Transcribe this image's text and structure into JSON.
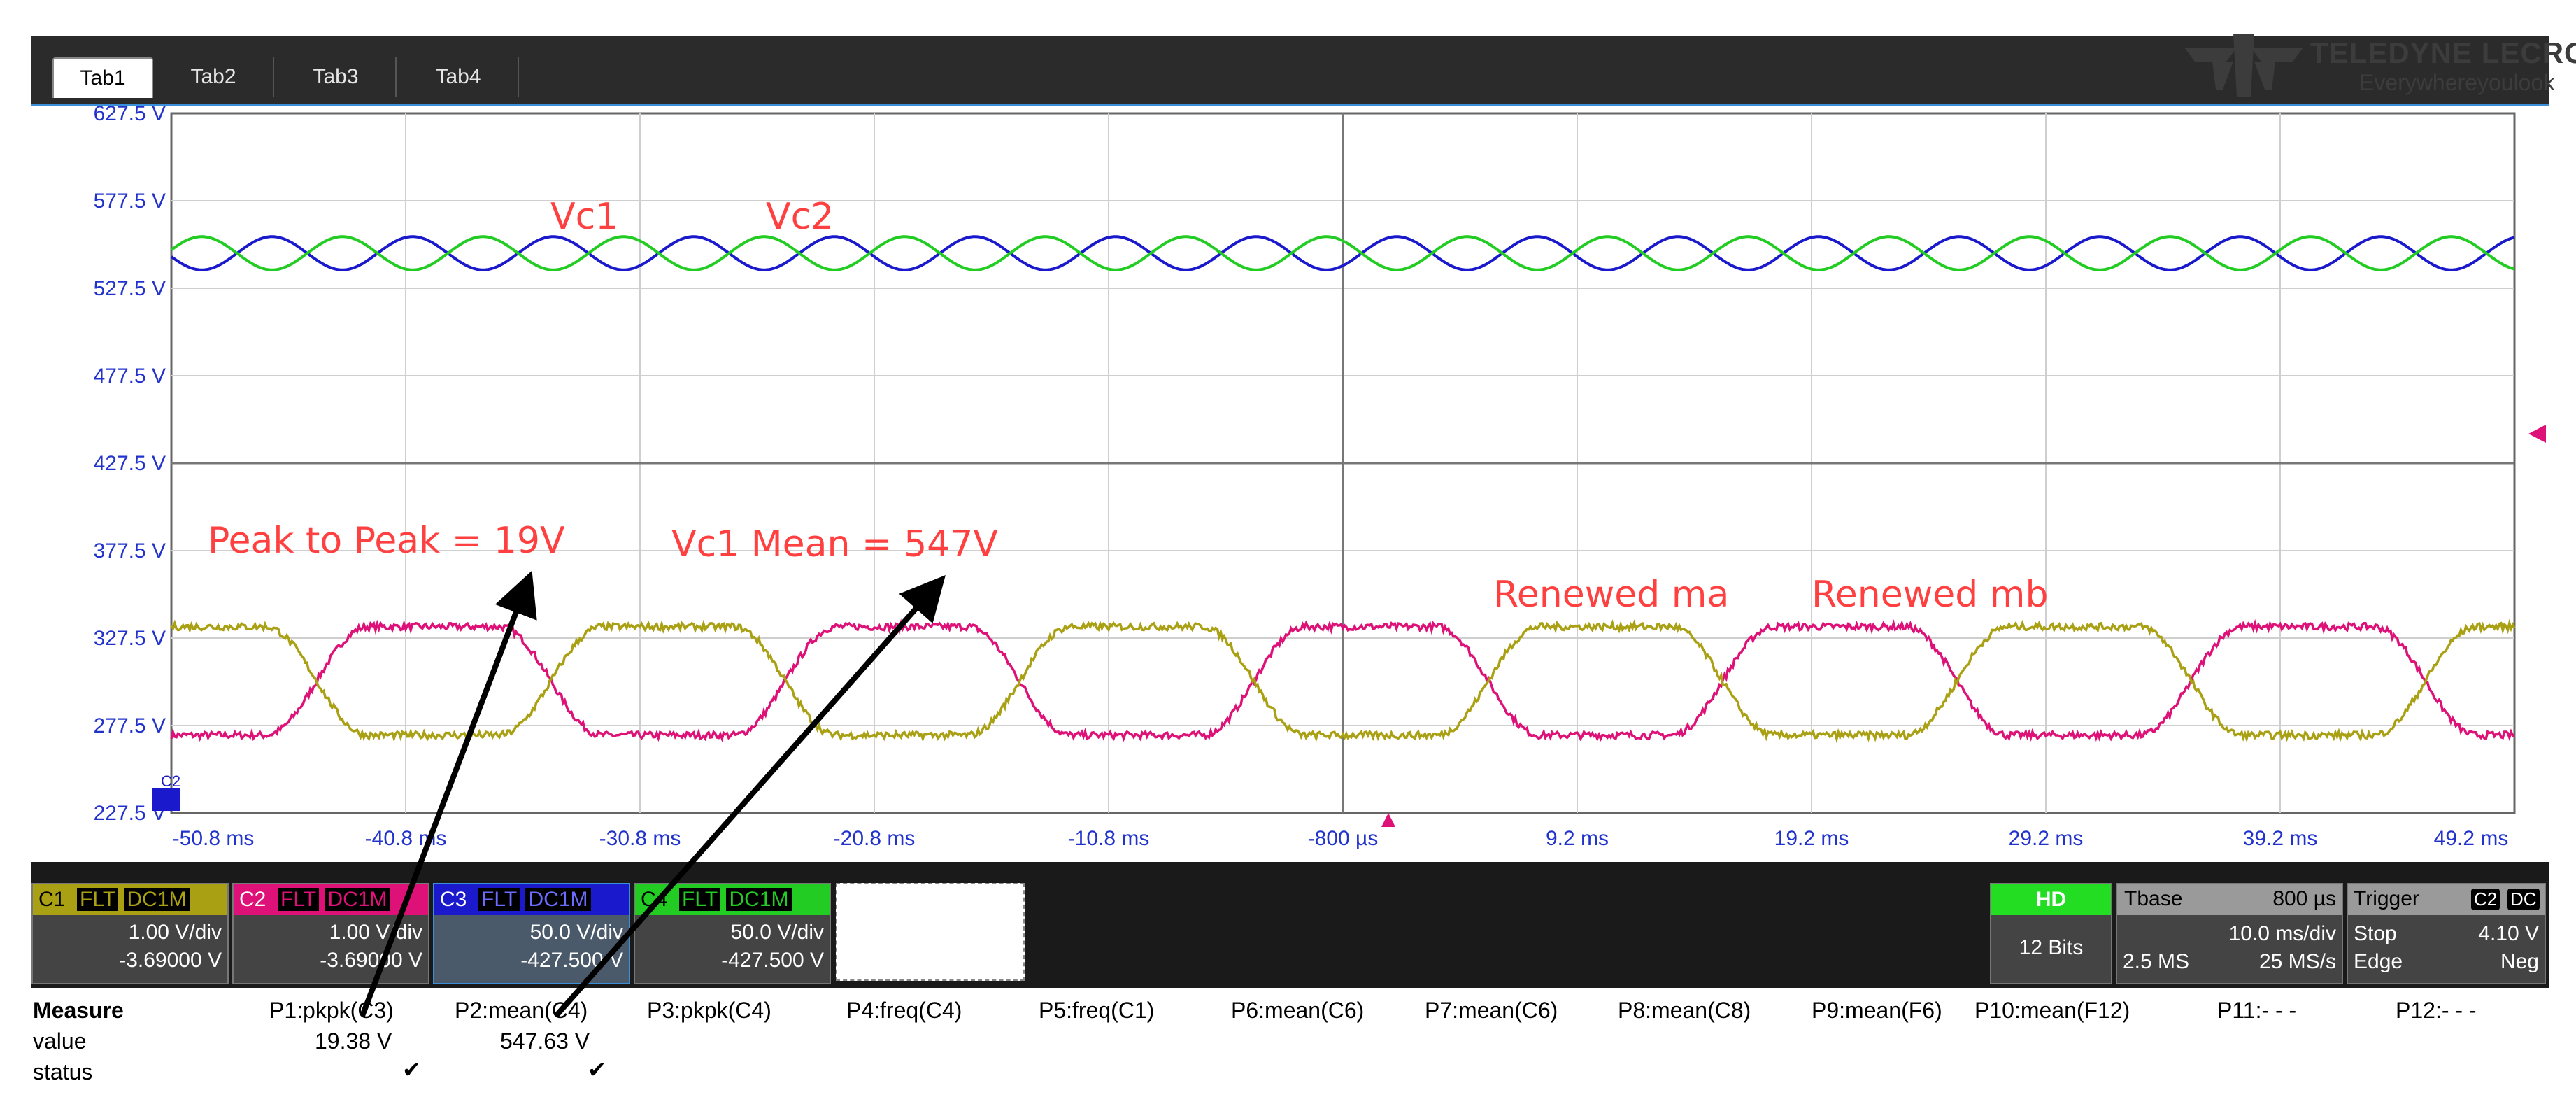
{
  "tabs": [
    "Tab1",
    "Tab2",
    "Tab3",
    "Tab4"
  ],
  "active_tab": "Tab1",
  "brand": {
    "name": "TELEDYNE LECROY",
    "tagline": "Everywhereyoulook"
  },
  "y_labels": [
    "627.5 V",
    "577.5 V",
    "527.5 V",
    "477.5 V",
    "427.5 V",
    "377.5 V",
    "327.5 V",
    "277.5 V",
    "227.5 V"
  ],
  "x_labels": [
    "-50.8 ms",
    "-40.8 ms",
    "-30.8 ms",
    "-20.8 ms",
    "-10.8 ms",
    "-800 µs",
    "9.2 ms",
    "19.2 ms",
    "29.2 ms",
    "39.2 ms",
    "49.2 ms"
  ],
  "annotations": {
    "vc1": "Vc1",
    "vc2": "Vc2",
    "peak_to_peak": "Peak to Peak = 19V",
    "vc1_mean": "Vc1 Mean = 547V",
    "renewed_ma": "Renewed ma",
    "renewed_mb": "Renewed mb"
  },
  "chart_data": {
    "type": "line",
    "ylim": [
      227.5,
      627.5
    ],
    "xlim": [
      -50.8,
      49.2
    ],
    "x_unit": "ms",
    "series": [
      {
        "name": "Vc1",
        "color": "#1a1acc",
        "kind": "sine",
        "center": 547.5,
        "amplitude": 9.5,
        "period_ms": 6.0,
        "phase": 0
      },
      {
        "name": "Vc2",
        "color": "#22cc22",
        "kind": "sine",
        "center": 547.5,
        "amplitude": 9.5,
        "period_ms": 6.0,
        "phase": 3.1416
      },
      {
        "name": "Renewed ma",
        "color": "#dd1177",
        "kind": "trapezoid",
        "low": 272,
        "high": 334,
        "period_ms": 20.0,
        "phase_ms": -6.8
      },
      {
        "name": "Renewed mb",
        "color": "#aaa014",
        "kind": "trapezoid",
        "low": 272,
        "high": 334,
        "period_ms": 20.0,
        "phase_ms": 3.2
      }
    ]
  },
  "channels": [
    {
      "id": "C1",
      "coupling": "FLT",
      "mode": "DC1M",
      "vdiv": "1.00 V/div",
      "offset": "-3.69000 V",
      "color": "#aaa014"
    },
    {
      "id": "C2",
      "coupling": "FLT",
      "mode": "DC1M",
      "vdiv": "1.00 V/div",
      "offset": "-3.69000 V",
      "color": "#dd1177"
    },
    {
      "id": "C3",
      "coupling": "FLT",
      "mode": "DC1M",
      "vdiv": "50.0 V/div",
      "offset": "-427.500 V",
      "color": "#1a1acc"
    },
    {
      "id": "C4",
      "coupling": "FLT",
      "mode": "DC1M",
      "vdiv": "50.0 V/div",
      "offset": "-427.500 V",
      "color": "#22cc22"
    }
  ],
  "acq": {
    "hd": "HD",
    "bits": "12 Bits"
  },
  "timebase": {
    "label": "Tbase",
    "value": "800 µs",
    "tdiv": "10.0 ms/div",
    "samples": "2.5 MS",
    "rate": "25 MS/s"
  },
  "trigger": {
    "label": "Trigger",
    "src": "C2",
    "cpl": "DC",
    "state": "Stop",
    "level": "4.10 V",
    "type": "Edge",
    "slope": "Neg"
  },
  "marker": "C2",
  "measure": {
    "header": "Measure",
    "row_labels": [
      "value",
      "status"
    ],
    "params": [
      {
        "name": "P1:pkpk(C3)",
        "value": "19.38 V",
        "status": "✔"
      },
      {
        "name": "P2:mean(C4)",
        "value": "547.63 V",
        "status": "✔"
      },
      {
        "name": "P3:pkpk(C4)",
        "value": "",
        "status": ""
      },
      {
        "name": "P4:freq(C4)",
        "value": "",
        "status": ""
      },
      {
        "name": "P5:freq(C1)",
        "value": "",
        "status": ""
      },
      {
        "name": "P6:mean(C6)",
        "value": "",
        "status": ""
      },
      {
        "name": "P7:mean(C6)",
        "value": "",
        "status": ""
      },
      {
        "name": "P8:mean(C8)",
        "value": "",
        "status": ""
      },
      {
        "name": "P9:mean(F6)",
        "value": "",
        "status": ""
      },
      {
        "name": "P10:mean(F12)",
        "value": "",
        "status": ""
      },
      {
        "name": "P11:- - -",
        "value": "",
        "status": ""
      },
      {
        "name": "P12:- - -",
        "value": "",
        "status": ""
      }
    ]
  }
}
